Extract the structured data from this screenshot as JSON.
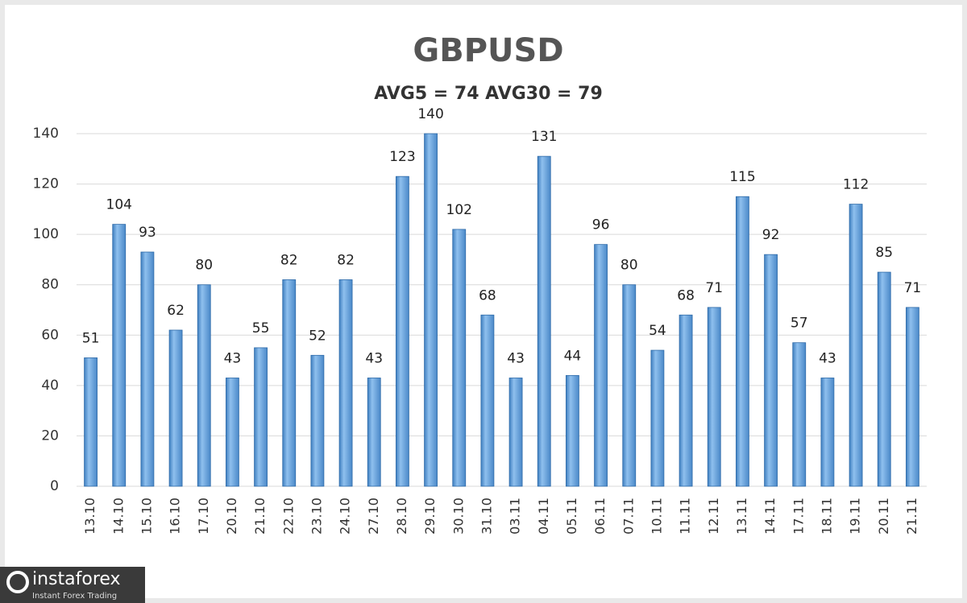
{
  "chart_data": {
    "type": "bar",
    "title": "GBPUSD",
    "subtitle": "AVG5 = 74 AVG30 = 79",
    "categories": [
      "13.10",
      "14.10",
      "15.10",
      "16.10",
      "17.10",
      "20.10",
      "21.10",
      "22.10",
      "23.10",
      "24.10",
      "27.10",
      "28.10",
      "29.10",
      "30.10",
      "31.10",
      "03.11",
      "04.11",
      "05.11",
      "06.11",
      "07.11",
      "10.11",
      "11.11",
      "12.11",
      "13.11",
      "14.11",
      "17.11",
      "18.11",
      "19.11",
      "20.11",
      "21.11"
    ],
    "values": [
      51,
      104,
      93,
      62,
      80,
      43,
      55,
      82,
      52,
      82,
      43,
      123,
      140,
      102,
      68,
      43,
      131,
      44,
      96,
      80,
      54,
      68,
      71,
      115,
      92,
      57,
      43,
      112,
      85,
      71
    ],
    "color": "#5b9bd5",
    "ylim": [
      0,
      140
    ],
    "yticks": [
      0,
      20,
      40,
      60,
      80,
      100,
      120,
      140
    ],
    "grid": true
  },
  "logo": {
    "name": "instaforex",
    "tagline": "Instant Forex Trading"
  }
}
